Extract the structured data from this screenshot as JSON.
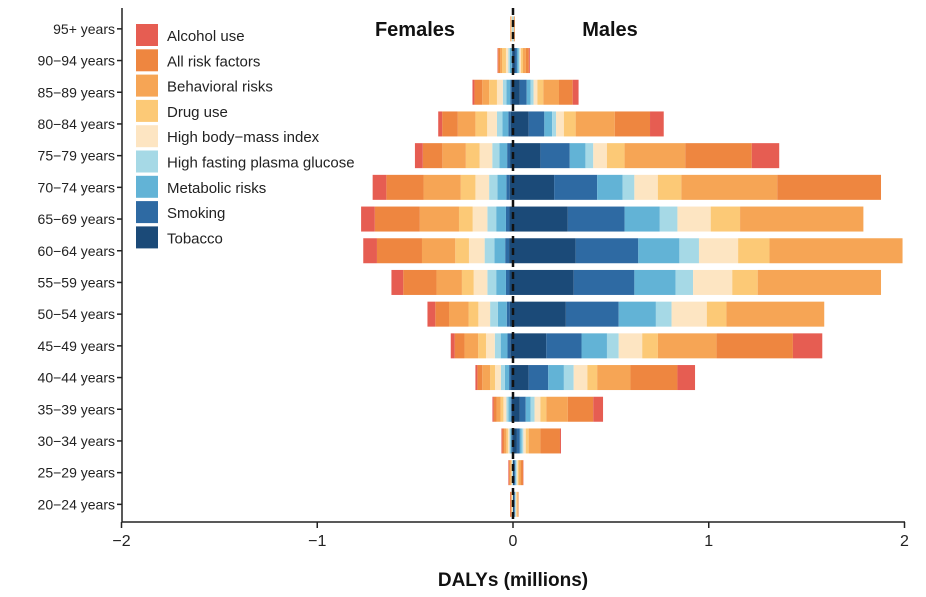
{
  "chart_data": {
    "type": "bar",
    "orientation": "horizontal-stacked",
    "xlabel": "DALYs (millions)",
    "xlim": [
      -2,
      2
    ],
    "xticks": [
      -2,
      -1,
      0,
      1,
      2
    ],
    "xtick_labels": [
      "−2",
      "−1",
      "0",
      "1",
      "2"
    ],
    "panel_labels": {
      "left": "Females",
      "right": "Males"
    },
    "legend_position": "top-left",
    "categories": [
      "20−24 years",
      "25−29 years",
      "30−34 years",
      "35−39 years",
      "40−44 years",
      "45−49 years",
      "50−54 years",
      "55−59 years",
      "60−64 years",
      "65−69 years",
      "70−74 years",
      "75−79 years",
      "80−84 years",
      "85−89 years",
      "90−94 years",
      "95+ years"
    ],
    "series": [
      {
        "name": "Tobacco",
        "color": "#1b4a78",
        "female": [
          0,
          0,
          0.004,
          0.006,
          0.01,
          0.014,
          0.016,
          0.018,
          0.02,
          0.018,
          0.017,
          0.015,
          0.012,
          0.007,
          0.003,
          0
        ],
        "male": [
          0.005,
          0.006,
          0.02,
          0.035,
          0.08,
          0.17,
          0.27,
          0.31,
          0.32,
          0.28,
          0.21,
          0.14,
          0.08,
          0.035,
          0.01,
          0
        ]
      },
      {
        "name": "Smoking",
        "color": "#2e6aa3",
        "female": [
          0,
          0,
          0.004,
          0.006,
          0.01,
          0.014,
          0.016,
          0.018,
          0.02,
          0.018,
          0.017,
          0.015,
          0.012,
          0.007,
          0.003,
          0
        ],
        "male": [
          0.004,
          0.005,
          0.015,
          0.03,
          0.1,
          0.18,
          0.27,
          0.31,
          0.32,
          0.29,
          0.22,
          0.15,
          0.08,
          0.035,
          0.01,
          0
        ]
      },
      {
        "name": "Metabolic risks",
        "color": "#62b3d6",
        "female": [
          0.001,
          0.002,
          0.005,
          0.012,
          0.022,
          0.035,
          0.045,
          0.05,
          0.055,
          0.05,
          0.046,
          0.04,
          0.03,
          0.02,
          0.01,
          0.002
        ],
        "male": [
          0.003,
          0.004,
          0.01,
          0.025,
          0.08,
          0.13,
          0.19,
          0.21,
          0.21,
          0.18,
          0.13,
          0.08,
          0.04,
          0.02,
          0.008,
          0.002
        ]
      },
      {
        "name": "High fasting plasma glucose",
        "color": "#a6d9e6",
        "female": [
          0.001,
          0.002,
          0.005,
          0.01,
          0.02,
          0.03,
          0.04,
          0.045,
          0.05,
          0.045,
          0.042,
          0.036,
          0.028,
          0.018,
          0.008,
          0.002
        ],
        "male": [
          0.002,
          0.004,
          0.008,
          0.02,
          0.05,
          0.06,
          0.08,
          0.09,
          0.1,
          0.09,
          0.06,
          0.04,
          0.02,
          0.015,
          0.006,
          0.001
        ]
      },
      {
        "name": "High body−mass index",
        "color": "#fde5c2",
        "female": [
          0.002,
          0.003,
          0.008,
          0.015,
          0.03,
          0.045,
          0.06,
          0.07,
          0.08,
          0.075,
          0.07,
          0.065,
          0.05,
          0.03,
          0.012,
          0.003
        ],
        "male": [
          0.004,
          0.006,
          0.012,
          0.03,
          0.07,
          0.12,
          0.18,
          0.2,
          0.2,
          0.17,
          0.12,
          0.07,
          0.04,
          0.02,
          0.007,
          0.001
        ]
      },
      {
        "name": "Drug use",
        "color": "#fcc976",
        "female": [
          0.003,
          0.004,
          0.008,
          0.015,
          0.025,
          0.04,
          0.05,
          0.06,
          0.07,
          0.07,
          0.075,
          0.07,
          0.06,
          0.04,
          0.02,
          0.003
        ],
        "male": [
          0.004,
          0.006,
          0.015,
          0.03,
          0.05,
          0.08,
          0.1,
          0.13,
          0.16,
          0.15,
          0.12,
          0.09,
          0.06,
          0.03,
          0.01,
          0.002
        ]
      },
      {
        "name": "Behavioral risks",
        "color": "#f6a555",
        "female": [
          0.003,
          0.005,
          0.01,
          0.02,
          0.04,
          0.07,
          0.1,
          0.13,
          0.17,
          0.2,
          0.19,
          0.12,
          0.09,
          0.035,
          0.01,
          0.002
        ],
        "male": [
          0.003,
          0.01,
          0.06,
          0.11,
          0.17,
          0.3,
          0.5,
          0.63,
          0.68,
          0.63,
          0.49,
          0.31,
          0.2,
          0.08,
          0.015,
          0.002
        ]
      },
      {
        "name": "All risk factors",
        "color": "#ee8640",
        "female": [
          0.003,
          0.005,
          0.01,
          0.015,
          0.025,
          0.05,
          0.07,
          0.17,
          0.23,
          0.23,
          0.19,
          0.1,
          0.08,
          0.04,
          0.01,
          0.002
        ],
        "male": [
          0.003,
          0.01,
          0.1,
          0.13,
          0.24,
          0.39,
          0,
          0,
          0,
          0,
          0.53,
          0.34,
          0.18,
          0.07,
          0.015,
          0.002
        ]
      },
      {
        "name": "Alcohol use",
        "color": "#e65d52",
        "female": [
          0.002,
          0.003,
          0.005,
          0.006,
          0.01,
          0.02,
          0.04,
          0.06,
          0.07,
          0.07,
          0.07,
          0.04,
          0.02,
          0.01,
          0.003,
          0
        ],
        "male": [
          0,
          0.002,
          0.005,
          0.05,
          0.09,
          0.15,
          0,
          0,
          0,
          0,
          0,
          0.14,
          0.07,
          0.03,
          0.005,
          0
        ]
      }
    ]
  }
}
